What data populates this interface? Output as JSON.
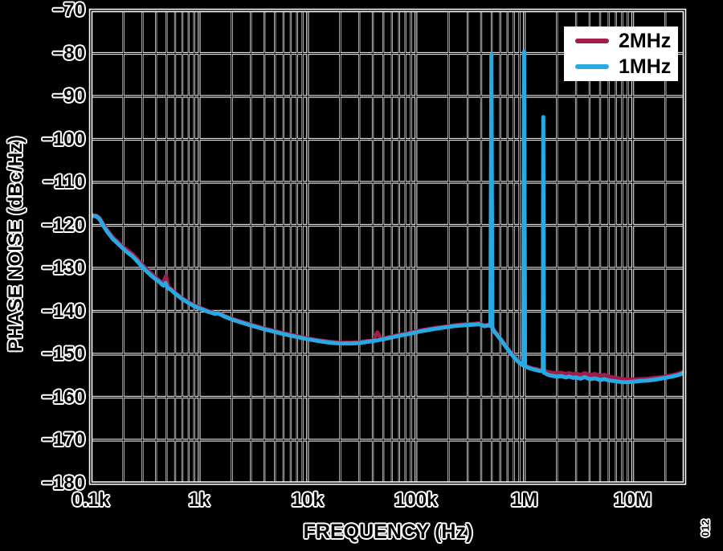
{
  "figure": {
    "id_label": "012"
  },
  "colors": {
    "background": "#000000",
    "grid_halo": "#FFFFFF",
    "grid_core": "#000000",
    "frame": "#FFFFFF",
    "legend_background": "#FFFFFF",
    "text": "#000000",
    "text_halo": "#FFFFFF",
    "series_2mhz": "#A21C4B",
    "series_1mhz": "#29A9E1"
  },
  "chart_data": {
    "type": "line",
    "title": "",
    "xlabel": "FREQUENCY (Hz)",
    "ylabel": "PHASE NOISE (dBc/Hz)",
    "x_scale": "log",
    "x_range_hz": [
      100,
      30000000
    ],
    "y_range_dbchz": [
      -180,
      -70
    ],
    "grid": "on",
    "legend_position": "top-right",
    "x_tick_labels": [
      {
        "f": 100,
        "label": "0.1k"
      },
      {
        "f": 1000,
        "label": "1k"
      },
      {
        "f": 10000,
        "label": "10k"
      },
      {
        "f": 100000,
        "label": "100k"
      },
      {
        "f": 1000000,
        "label": "1M"
      },
      {
        "f": 10000000,
        "label": "10M"
      }
    ],
    "y_ticks": [
      {
        "v": -70,
        "label": "−70"
      },
      {
        "v": -80,
        "label": "−80"
      },
      {
        "v": -90,
        "label": "−90"
      },
      {
        "v": -100,
        "label": "−100"
      },
      {
        "v": -110,
        "label": "−110"
      },
      {
        "v": -120,
        "label": "−120"
      },
      {
        "v": -130,
        "label": "−130"
      },
      {
        "v": -140,
        "label": "−140"
      },
      {
        "v": -150,
        "label": "−150"
      },
      {
        "v": -160,
        "label": "−160"
      },
      {
        "v": -170,
        "label": "−170"
      },
      {
        "v": -180,
        "label": "−180"
      }
    ],
    "series": [
      {
        "name": "2MHz",
        "color": "#A21C4B",
        "points": [
          [
            100,
            -117.6
          ],
          [
            112,
            -117.7
          ],
          [
            120,
            -118.2
          ],
          [
            130,
            -119.6
          ],
          [
            140,
            -120.9
          ],
          [
            150,
            -121.9
          ],
          [
            160,
            -122.8
          ],
          [
            170,
            -123.4
          ],
          [
            180,
            -124.0
          ],
          [
            200,
            -125.1
          ],
          [
            215,
            -125.7
          ],
          [
            225,
            -126.1
          ],
          [
            240,
            -126.6
          ],
          [
            260,
            -127.5
          ],
          [
            280,
            -128.4
          ],
          [
            300,
            -129.2
          ],
          [
            330,
            -130.3
          ],
          [
            360,
            -131.2
          ],
          [
            400,
            -132.2
          ],
          [
            430,
            -132.9
          ],
          [
            460,
            -133.6
          ],
          [
            480,
            -132.6
          ],
          [
            495,
            -131.8
          ],
          [
            512,
            -133.6
          ],
          [
            525,
            -134.4
          ],
          [
            550,
            -134.8
          ],
          [
            600,
            -135.7
          ],
          [
            700,
            -137.0
          ],
          [
            800,
            -137.9
          ],
          [
            900,
            -138.6
          ],
          [
            1000,
            -139.1
          ],
          [
            1200,
            -139.9
          ],
          [
            1400,
            -140.4
          ],
          [
            1500,
            -140.3
          ],
          [
            1700,
            -141.0
          ],
          [
            2000,
            -141.7
          ],
          [
            2500,
            -142.5
          ],
          [
            3000,
            -143.1
          ],
          [
            4000,
            -144.0
          ],
          [
            5000,
            -144.6
          ],
          [
            6000,
            -145.1
          ],
          [
            8000,
            -145.8
          ],
          [
            10000,
            -146.3
          ],
          [
            13000,
            -146.8
          ],
          [
            16000,
            -147.1
          ],
          [
            20000,
            -147.3
          ],
          [
            25000,
            -147.3
          ],
          [
            30000,
            -147.2
          ],
          [
            36000,
            -146.9
          ],
          [
            40000,
            -146.9
          ],
          [
            44000,
            -144.9
          ],
          [
            48000,
            -146.6
          ],
          [
            55000,
            -146.1
          ],
          [
            70000,
            -145.5
          ],
          [
            85000,
            -145.1
          ],
          [
            100000,
            -144.7
          ],
          [
            120000,
            -144.3
          ],
          [
            150000,
            -143.9
          ],
          [
            180000,
            -143.6
          ],
          [
            220000,
            -143.3
          ],
          [
            260000,
            -143.1
          ],
          [
            300000,
            -143.0
          ],
          [
            350000,
            -142.9
          ],
          [
            380000,
            -142.8
          ],
          [
            400000,
            -143.0
          ],
          [
            430000,
            -143.3
          ],
          [
            460000,
            -143.1
          ],
          [
            500000,
            -143.3
          ],
          [
            530000,
            -144.6
          ],
          [
            560000,
            -145.3
          ],
          [
            600000,
            -146.3
          ],
          [
            650000,
            -147.5
          ],
          [
            700000,
            -148.6
          ],
          [
            750000,
            -149.6
          ],
          [
            800000,
            -150.5
          ],
          [
            850000,
            -151.2
          ],
          [
            900000,
            -151.8
          ],
          [
            940000,
            -152.2
          ],
          [
            975000,
            -152.4
          ],
          [
            995000,
            -79.8
          ],
          [
            1015000,
            -152.6
          ],
          [
            1100000,
            -153.0
          ],
          [
            1200000,
            -153.3
          ],
          [
            1300000,
            -153.5
          ],
          [
            1400000,
            -153.7
          ],
          [
            1500000,
            -153.8
          ],
          [
            1600000,
            -154.0
          ],
          [
            1700000,
            -154.2
          ],
          [
            1800000,
            -154.3
          ],
          [
            2000000,
            -154.4
          ],
          [
            2200000,
            -154.3
          ],
          [
            2400000,
            -154.6
          ],
          [
            2600000,
            -154.4
          ],
          [
            2800000,
            -154.7
          ],
          [
            3000000,
            -154.5
          ],
          [
            3300000,
            -154.8
          ],
          [
            3600000,
            -154.4
          ],
          [
            4000000,
            -154.9
          ],
          [
            4500000,
            -154.6
          ],
          [
            5000000,
            -155.0
          ],
          [
            5500000,
            -154.8
          ],
          [
            6000000,
            -155.2
          ],
          [
            7000000,
            -155.5
          ],
          [
            8000000,
            -155.8
          ],
          [
            9000000,
            -155.9
          ],
          [
            10000000,
            -155.9
          ],
          [
            12000000,
            -155.8
          ],
          [
            14000000,
            -155.7
          ],
          [
            16000000,
            -155.5
          ],
          [
            18000000,
            -155.4
          ],
          [
            20000000,
            -155.2
          ],
          [
            23000000,
            -154.9
          ],
          [
            26000000,
            -154.6
          ],
          [
            30000000,
            -154.0
          ]
        ]
      },
      {
        "name": "1MHz",
        "color": "#29A9E1",
        "points": [
          [
            100,
            -117.8
          ],
          [
            112,
            -117.9
          ],
          [
            120,
            -118.5
          ],
          [
            130,
            -120.0
          ],
          [
            140,
            -121.3
          ],
          [
            150,
            -122.3
          ],
          [
            160,
            -123.2
          ],
          [
            170,
            -123.8
          ],
          [
            180,
            -124.4
          ],
          [
            200,
            -125.5
          ],
          [
            215,
            -126.2
          ],
          [
            225,
            -126.6
          ],
          [
            240,
            -127.1
          ],
          [
            260,
            -128.0
          ],
          [
            280,
            -128.9
          ],
          [
            300,
            -129.7
          ],
          [
            330,
            -130.8
          ],
          [
            360,
            -131.7
          ],
          [
            400,
            -132.6
          ],
          [
            430,
            -133.2
          ],
          [
            460,
            -133.9
          ],
          [
            470,
            -134.0
          ],
          [
            490,
            -133.4
          ],
          [
            510,
            -134.6
          ],
          [
            550,
            -135.0
          ],
          [
            600,
            -135.9
          ],
          [
            700,
            -137.2
          ],
          [
            800,
            -138.1
          ],
          [
            900,
            -138.8
          ],
          [
            1000,
            -139.3
          ],
          [
            1200,
            -140.1
          ],
          [
            1400,
            -140.6
          ],
          [
            1500,
            -140.5
          ],
          [
            1700,
            -141.2
          ],
          [
            2000,
            -141.9
          ],
          [
            2500,
            -142.7
          ],
          [
            3000,
            -143.3
          ],
          [
            4000,
            -144.2
          ],
          [
            5000,
            -144.8
          ],
          [
            6000,
            -145.3
          ],
          [
            8000,
            -146.0
          ],
          [
            10000,
            -146.5
          ],
          [
            13000,
            -147.0
          ],
          [
            16000,
            -147.3
          ],
          [
            20000,
            -147.5
          ],
          [
            25000,
            -147.5
          ],
          [
            30000,
            -147.4
          ],
          [
            36000,
            -147.1
          ],
          [
            43000,
            -146.8
          ],
          [
            50000,
            -146.5
          ],
          [
            60000,
            -146.1
          ],
          [
            70000,
            -145.7
          ],
          [
            85000,
            -145.3
          ],
          [
            100000,
            -144.9
          ],
          [
            120000,
            -144.5
          ],
          [
            150000,
            -144.1
          ],
          [
            180000,
            -143.8
          ],
          [
            220000,
            -143.5
          ],
          [
            260000,
            -143.3
          ],
          [
            300000,
            -143.2
          ],
          [
            350000,
            -143.1
          ],
          [
            380000,
            -143.0
          ],
          [
            400000,
            -143.2
          ],
          [
            430000,
            -143.5
          ],
          [
            460000,
            -143.3
          ],
          [
            487000,
            -143.4
          ],
          [
            497000,
            -80.3
          ],
          [
            507000,
            -144.0
          ],
          [
            530000,
            -144.8
          ],
          [
            560000,
            -145.5
          ],
          [
            600000,
            -146.5
          ],
          [
            650000,
            -147.7
          ],
          [
            700000,
            -148.8
          ],
          [
            750000,
            -149.8
          ],
          [
            800000,
            -150.7
          ],
          [
            850000,
            -151.4
          ],
          [
            900000,
            -152.0
          ],
          [
            940000,
            -152.4
          ],
          [
            975000,
            -152.6
          ],
          [
            995000,
            -79.6
          ],
          [
            1015000,
            -152.8
          ],
          [
            1100000,
            -153.2
          ],
          [
            1200000,
            -153.5
          ],
          [
            1300000,
            -153.7
          ],
          [
            1400000,
            -153.9
          ],
          [
            1480000,
            -153.9
          ],
          [
            1497000,
            -94.8
          ],
          [
            1515000,
            -154.3
          ],
          [
            1550000,
            -154.4
          ],
          [
            1600000,
            -154.6
          ],
          [
            1700000,
            -154.9
          ],
          [
            1800000,
            -155.0
          ],
          [
            2000000,
            -155.2
          ],
          [
            2200000,
            -155.1
          ],
          [
            2400000,
            -155.4
          ],
          [
            2600000,
            -155.2
          ],
          [
            2800000,
            -155.5
          ],
          [
            3000000,
            -155.4
          ],
          [
            3300000,
            -155.7
          ],
          [
            3600000,
            -155.3
          ],
          [
            4000000,
            -155.8
          ],
          [
            4500000,
            -155.6
          ],
          [
            5000000,
            -156.0
          ],
          [
            5500000,
            -155.8
          ],
          [
            6000000,
            -156.1
          ],
          [
            7000000,
            -156.3
          ],
          [
            8000000,
            -156.5
          ],
          [
            9000000,
            -156.5
          ],
          [
            10000000,
            -156.4
          ],
          [
            12000000,
            -156.2
          ],
          [
            14000000,
            -156.1
          ],
          [
            16000000,
            -155.9
          ],
          [
            18000000,
            -155.7
          ],
          [
            20000000,
            -155.5
          ],
          [
            23000000,
            -155.2
          ],
          [
            26000000,
            -154.9
          ],
          [
            30000000,
            -154.3
          ]
        ]
      }
    ]
  }
}
